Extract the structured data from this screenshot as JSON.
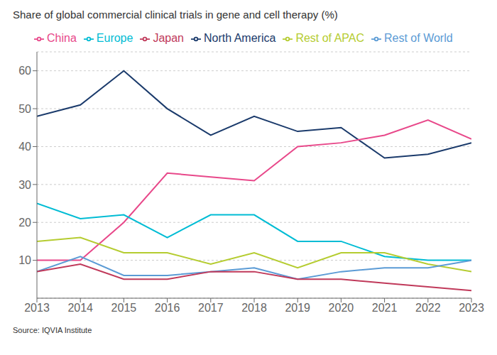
{
  "chart_data": {
    "type": "line",
    "title": "Share of global commercial clinical trials in gene and cell therapy (%)",
    "annotations": [
      "Source: IQVIA Institute"
    ],
    "x": [
      2013,
      2014,
      2015,
      2016,
      2017,
      2018,
      2019,
      2020,
      2021,
      2022,
      2023
    ],
    "series": [
      {
        "name": "North America",
        "color": "#1a3a6b",
        "values": [
          48,
          51,
          60,
          50,
          43,
          48,
          44,
          45,
          37,
          38,
          41
        ]
      },
      {
        "name": "China",
        "color": "#e8488a",
        "values": [
          10,
          10,
          20,
          33,
          32,
          31,
          40,
          41,
          43,
          47,
          42
        ]
      },
      {
        "name": "Europe",
        "color": "#00bcd4",
        "values": [
          25,
          21,
          22,
          16,
          22,
          22,
          15,
          15,
          11,
          10,
          10
        ]
      },
      {
        "name": "Rest of APAC",
        "color": "#b5cc30",
        "values": [
          15,
          16,
          12,
          12,
          9,
          12,
          8,
          12,
          12,
          9,
          7
        ]
      },
      {
        "name": "Rest of World",
        "color": "#5b9bd5",
        "values": [
          7,
          11,
          6,
          6,
          7,
          8,
          5,
          7,
          8,
          8,
          10
        ]
      },
      {
        "name": "Japan",
        "color": "#c0395a",
        "values": [
          7,
          9,
          5,
          5,
          7,
          7,
          5,
          5,
          4,
          3,
          2
        ]
      }
    ],
    "xlim": [
      2013,
      2023
    ],
    "xticks": [
      2013,
      2014,
      2015,
      2016,
      2017,
      2018,
      2019,
      2020,
      2021,
      2022,
      2023
    ],
    "ylim": [
      0,
      65
    ],
    "yticks": [
      10,
      20,
      30,
      40,
      50,
      60
    ],
    "grid": true,
    "legend": "top"
  }
}
